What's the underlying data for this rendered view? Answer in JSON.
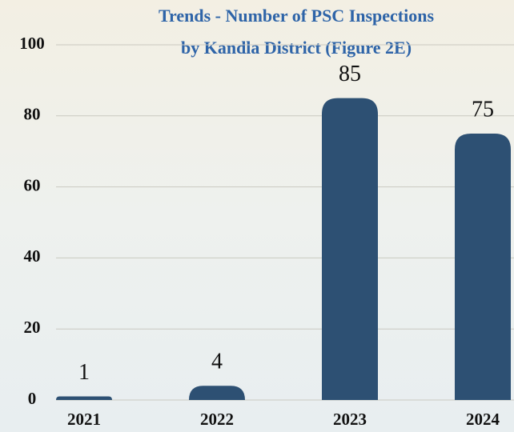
{
  "chart_data": {
    "type": "bar",
    "title": [
      "Trends - Number of PSC Inspections",
      "by Kandla District (Figure 2E)"
    ],
    "categories": [
      "2021",
      "2022",
      "2023",
      "2024"
    ],
    "values": [
      1,
      4,
      85,
      75
    ],
    "color": "#2d5073",
    "ylim": [
      0,
      100
    ],
    "yticks": [
      0,
      20,
      40,
      60,
      80,
      100
    ],
    "grid": true
  }
}
